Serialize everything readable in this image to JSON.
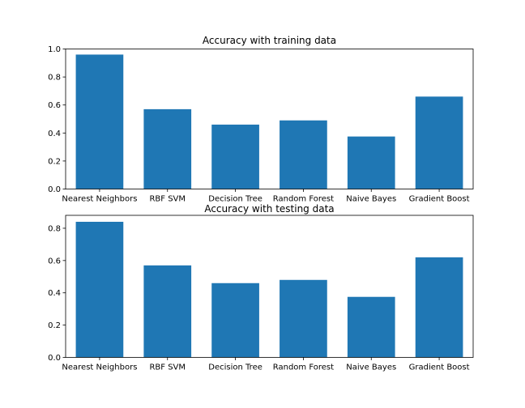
{
  "chart_data": [
    {
      "type": "bar",
      "title": "Accuracy with training data",
      "xlabel": "",
      "ylabel": "",
      "categories": [
        "Nearest Neighbors",
        "RBF SVM",
        "Decision Tree",
        "Random Forest",
        "Naive Bayes",
        "Gradient Boost"
      ],
      "values": [
        0.96,
        0.57,
        0.46,
        0.49,
        0.375,
        0.66
      ],
      "ylim": [
        0,
        1.0
      ],
      "yticks": [
        0.0,
        0.2,
        0.4,
        0.6,
        0.8,
        1.0
      ],
      "ytick_labels": [
        "0.0",
        "0.2",
        "0.4",
        "0.6",
        "0.8",
        "1.0"
      ],
      "grid": false,
      "legend": "none",
      "bar_color": "#1f77b4"
    },
    {
      "type": "bar",
      "title": "Accuracy with testing data",
      "xlabel": "",
      "ylabel": "",
      "categories": [
        "Nearest Neighbors",
        "RBF SVM",
        "Decision Tree",
        "Random Forest",
        "Naive Bayes",
        "Gradient Boost"
      ],
      "values": [
        0.84,
        0.57,
        0.46,
        0.48,
        0.375,
        0.62
      ],
      "ylim": [
        0,
        0.88
      ],
      "yticks": [
        0.0,
        0.2,
        0.4,
        0.6,
        0.8
      ],
      "ytick_labels": [
        "0.0",
        "0.2",
        "0.4",
        "0.6",
        "0.8"
      ],
      "grid": false,
      "legend": "none",
      "bar_color": "#1f77b4"
    }
  ]
}
